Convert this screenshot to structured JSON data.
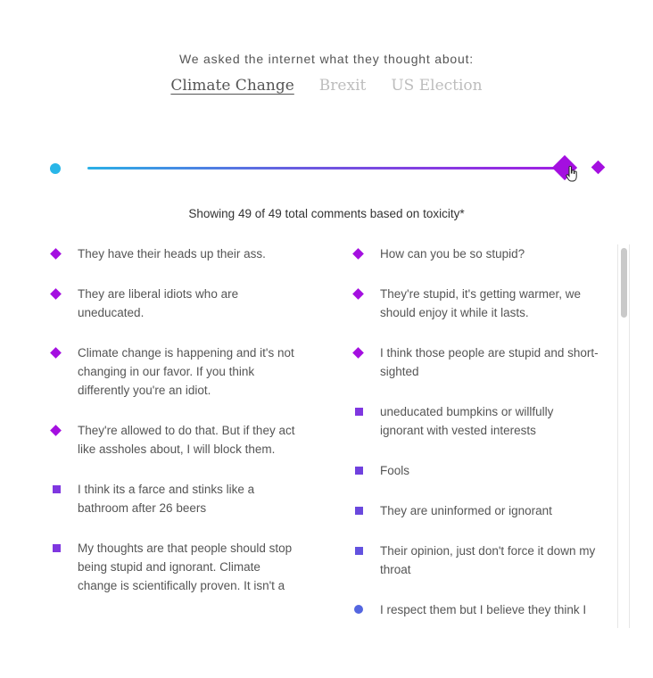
{
  "intro": "We asked the internet what they thought about:",
  "topics": [
    {
      "label": "Climate Change",
      "active": true
    },
    {
      "label": "Brexit",
      "active": false
    },
    {
      "label": "US Election",
      "active": false
    }
  ],
  "slider": {
    "low_color": "#29b6e8",
    "high_color": "#a40fe0",
    "value_fraction": 1.0
  },
  "showing_text": "Showing 49 of 49 total comments based on toxicity*",
  "comments_left": [
    {
      "text": "They have their heads up their ass.",
      "marker": "diamond",
      "color": "#a40fe0"
    },
    {
      "text": "They are liberal idiots who are uneducated.",
      "marker": "diamond",
      "color": "#a40fe0"
    },
    {
      "text": "Climate change is happening and it's not changing in our favor. If you think differently you're an idiot.",
      "marker": "diamond",
      "color": "#a40fe0"
    },
    {
      "text": "They're allowed to do that. But if they act like assholes about, I will block them.",
      "marker": "diamond",
      "color": "#a40fe0"
    },
    {
      "text": "I think its a farce and stinks like a bathroom after 26 beers",
      "marker": "square",
      "color": "#7f37e0"
    },
    {
      "text": "My thoughts are that people should stop being stupid and ignorant. Climate change is scientifically proven. It isn't a",
      "marker": "square",
      "color": "#7f37e0"
    }
  ],
  "comments_right": [
    {
      "text": "How can you be so stupid?",
      "marker": "diamond",
      "color": "#a40fe0"
    },
    {
      "text": "They're stupid, it's getting warmer, we should enjoy it while it lasts.",
      "marker": "diamond",
      "color": "#a40fe0"
    },
    {
      "text": "I think those people are stupid and short-sighted",
      "marker": "diamond",
      "color": "#a40fe0"
    },
    {
      "text": "uneducated bumpkins or willfully ignorant with vested interests",
      "marker": "square",
      "color": "#7f37e0"
    },
    {
      "text": "Fools",
      "marker": "square",
      "color": "#7041de"
    },
    {
      "text": "They are uninformed or ignorant",
      "marker": "square",
      "color": "#6a48dd"
    },
    {
      "text": "Their opinion, just don't force it down my throat",
      "marker": "square",
      "color": "#6352df"
    },
    {
      "text": "I respect them but I believe they think I",
      "marker": "circle",
      "color": "#5466e0"
    }
  ]
}
